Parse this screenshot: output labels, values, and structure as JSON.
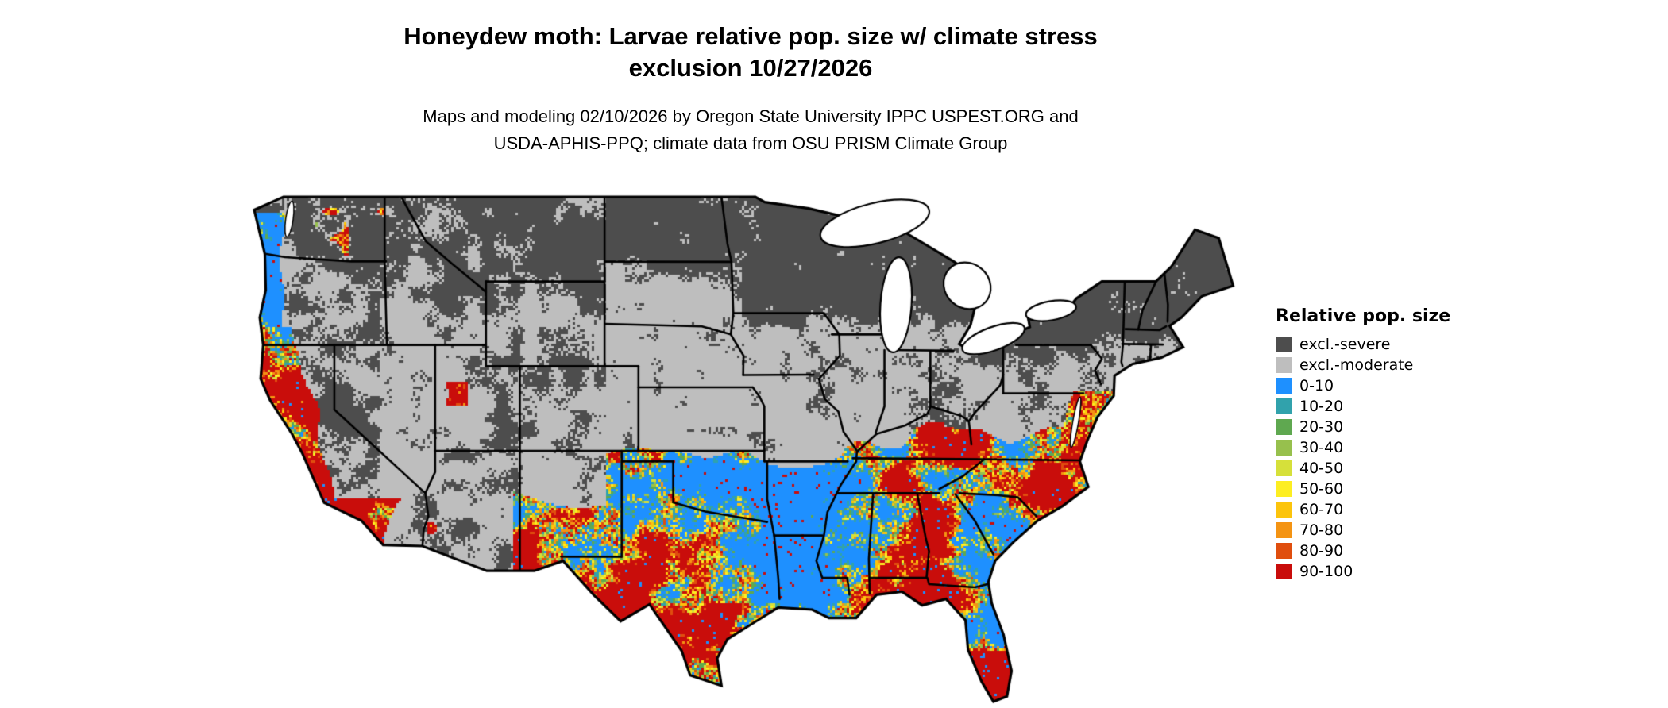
{
  "title": {
    "line1": "Honeydew moth: Larvae relative pop. size w/ climate stress",
    "line2": "exclusion 10/27/2026"
  },
  "subtitle": {
    "line1": "Maps and modeling 02/10/2026 by Oregon State University IPPC USPEST.ORG and",
    "line2": "USDA-APHIS-PPQ; climate data from OSU PRISM Climate Group"
  },
  "map": {
    "background_color": "#ffffff",
    "water_color": "#ffffff",
    "border_color": "#000000"
  },
  "legend": {
    "title": "Relative pop. size",
    "items": [
      {
        "label": "excl.-severe",
        "color": "#4d4d4d"
      },
      {
        "label": "excl.-moderate",
        "color": "#bebebe"
      },
      {
        "label": "0-10",
        "color": "#1e90ff"
      },
      {
        "label": "10-20",
        "color": "#31a2ac"
      },
      {
        "label": "20-30",
        "color": "#5fa850"
      },
      {
        "label": "30-40",
        "color": "#97c04d"
      },
      {
        "label": "40-50",
        "color": "#d6e03a"
      },
      {
        "label": "50-60",
        "color": "#fdee22"
      },
      {
        "label": "60-70",
        "color": "#fcc40c"
      },
      {
        "label": "70-80",
        "color": "#f49413"
      },
      {
        "label": "80-90",
        "color": "#e04e0e"
      },
      {
        "label": "90-100",
        "color": "#c90d0b"
      }
    ]
  }
}
